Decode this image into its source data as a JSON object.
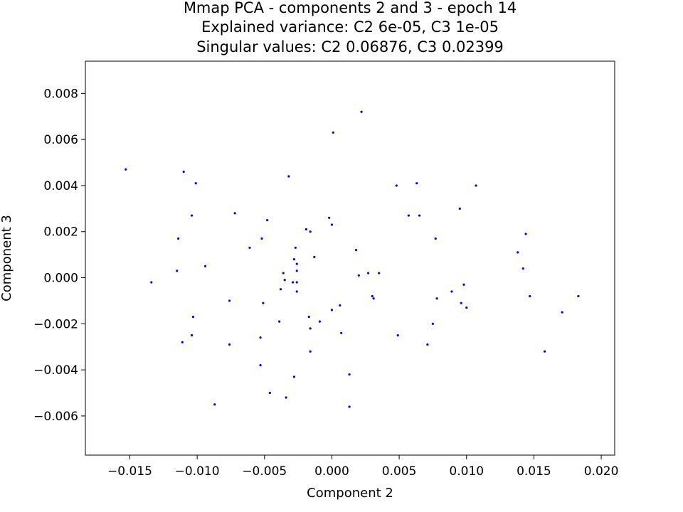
{
  "chart_data": {
    "type": "scatter",
    "title_lines": [
      "Mmap PCA - components 2 and 3 - epoch 14",
      "Explained variance: C2 6e-05, C3 1e-05",
      "Singular values: C2 0.06876, C3 0.02399"
    ],
    "xlabel": "Component 2",
    "ylabel": "Component 3",
    "xlim": [
      -0.0183,
      0.021
    ],
    "ylim": [
      -0.0077,
      0.0094
    ],
    "x_ticks": [
      -0.015,
      -0.01,
      -0.005,
      0.0,
      0.005,
      0.01,
      0.015,
      0.02
    ],
    "x_tick_labels": [
      "−0.015",
      "−0.010",
      "−0.005",
      "0.000",
      "0.005",
      "0.010",
      "0.015",
      "0.020"
    ],
    "y_ticks": [
      -0.006,
      -0.004,
      -0.002,
      0.0,
      0.002,
      0.004,
      0.006,
      0.008
    ],
    "y_tick_labels": [
      "−0.006",
      "−0.004",
      "−0.002",
      "0.000",
      "0.002",
      "0.004",
      "0.006",
      "0.008"
    ],
    "grid": false,
    "marker_color": "#0000ff",
    "points": [
      [
        -0.0153,
        0.0047
      ],
      [
        -0.0134,
        -0.0002
      ],
      [
        -0.0114,
        0.0017
      ],
      [
        -0.0115,
        0.0003
      ],
      [
        -0.011,
        0.0046
      ],
      [
        -0.0111,
        -0.0028
      ],
      [
        -0.0104,
        0.0027
      ],
      [
        -0.0101,
        0.0041
      ],
      [
        -0.0103,
        -0.0017
      ],
      [
        -0.0104,
        -0.0025
      ],
      [
        -0.0094,
        0.0005
      ],
      [
        -0.0087,
        -0.0055
      ],
      [
        -0.0072,
        0.0028
      ],
      [
        -0.0076,
        -0.001
      ],
      [
        -0.0076,
        -0.0029
      ],
      [
        -0.0061,
        0.0013
      ],
      [
        -0.0052,
        0.0017
      ],
      [
        -0.0048,
        0.0025
      ],
      [
        -0.0051,
        -0.0011
      ],
      [
        -0.0053,
        -0.0026
      ],
      [
        -0.0053,
        -0.0038
      ],
      [
        -0.0046,
        -0.005
      ],
      [
        -0.0039,
        -0.0019
      ],
      [
        -0.0038,
        -0.0005
      ],
      [
        -0.0036,
        0.0002
      ],
      [
        -0.0035,
        -0.0001
      ],
      [
        -0.0032,
        0.0044
      ],
      [
        -0.0034,
        -0.0052
      ],
      [
        -0.0028,
        0.0008
      ],
      [
        -0.0029,
        -0.0002
      ],
      [
        -0.0027,
        0.0013
      ],
      [
        -0.0026,
        0.0006
      ],
      [
        -0.0026,
        0.0003
      ],
      [
        -0.0026,
        -0.0002
      ],
      [
        -0.0026,
        -0.0006
      ],
      [
        -0.0028,
        -0.0043
      ],
      [
        -0.0019,
        0.0021
      ],
      [
        -0.0016,
        0.002
      ],
      [
        -0.0013,
        0.0009
      ],
      [
        -0.0017,
        -0.0017
      ],
      [
        -0.0016,
        -0.0022
      ],
      [
        -0.0016,
        -0.0032
      ],
      [
        -0.0009,
        -0.0019
      ],
      [
        -0.0002,
        0.0026
      ],
      [
        0.0,
        0.0023
      ],
      [
        0.0001,
        0.0063
      ],
      [
        0.0,
        -0.0014
      ],
      [
        0.0006,
        -0.0012
      ],
      [
        0.0007,
        -0.0024
      ],
      [
        0.0013,
        -0.0042
      ],
      [
        0.0013,
        -0.0056
      ],
      [
        0.0018,
        0.0012
      ],
      [
        0.002,
        0.0001
      ],
      [
        0.0022,
        0.0072
      ],
      [
        0.0027,
        0.0002
      ],
      [
        0.003,
        -0.0008
      ],
      [
        0.0031,
        -0.0009
      ],
      [
        0.0035,
        0.0002
      ],
      [
        0.0048,
        0.004
      ],
      [
        0.0049,
        -0.0025
      ],
      [
        0.0057,
        0.0027
      ],
      [
        0.0063,
        0.0041
      ],
      [
        0.0065,
        0.0027
      ],
      [
        0.0071,
        -0.0029
      ],
      [
        0.0075,
        -0.002
      ],
      [
        0.0077,
        0.0017
      ],
      [
        0.0078,
        -0.0009
      ],
      [
        0.0089,
        -0.0006
      ],
      [
        0.0095,
        0.003
      ],
      [
        0.0096,
        -0.0011
      ],
      [
        0.0098,
        -0.0003
      ],
      [
        0.01,
        -0.0013
      ],
      [
        0.0107,
        0.004
      ],
      [
        0.0138,
        0.0011
      ],
      [
        0.0142,
        0.0004
      ],
      [
        0.0144,
        0.0019
      ],
      [
        0.0147,
        -0.0008
      ],
      [
        0.0158,
        -0.0032
      ],
      [
        0.0171,
        -0.0015
      ],
      [
        0.0183,
        -0.0008
      ]
    ]
  }
}
